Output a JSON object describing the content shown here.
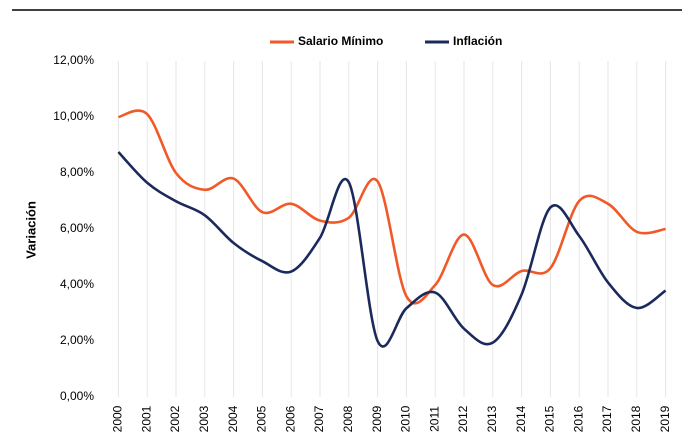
{
  "chart_data": {
    "type": "line",
    "y_label": "Variación",
    "categories": [
      "2000",
      "2001",
      "2002",
      "2003",
      "2004",
      "2005",
      "2006",
      "2007",
      "2008",
      "2009",
      "2010",
      "2011",
      "2012",
      "2013",
      "2014",
      "2015",
      "2016",
      "2017",
      "2018",
      "2019"
    ],
    "series": [
      {
        "name": "Salario Mínimo",
        "color": "#f05a28",
        "values": [
          10.0,
          10.1,
          8.0,
          7.4,
          7.8,
          6.6,
          6.9,
          6.3,
          6.4,
          7.7,
          3.6,
          4.0,
          5.8,
          4.0,
          4.5,
          4.6,
          7.0,
          6.9,
          5.9,
          6.0
        ]
      },
      {
        "name": "Inflación",
        "color": "#1b2a5c",
        "values": [
          8.75,
          7.65,
          6.99,
          6.49,
          5.5,
          4.85,
          4.48,
          5.69,
          7.67,
          2.0,
          3.17,
          3.73,
          2.44,
          1.94,
          3.66,
          6.77,
          5.75,
          4.09,
          3.18,
          3.8
        ]
      }
    ],
    "ylim": [
      0,
      12
    ],
    "yticks": [
      {
        "value": 0,
        "label": "0,00%"
      },
      {
        "value": 2,
        "label": "2,00%"
      },
      {
        "value": 4,
        "label": "4,00%"
      },
      {
        "value": 6,
        "label": "6,00%"
      },
      {
        "value": 8,
        "label": "8,00%"
      },
      {
        "value": 10,
        "label": "10,00%"
      },
      {
        "value": 12,
        "label": "12,00%"
      }
    ],
    "grid": true,
    "legend": "top"
  }
}
